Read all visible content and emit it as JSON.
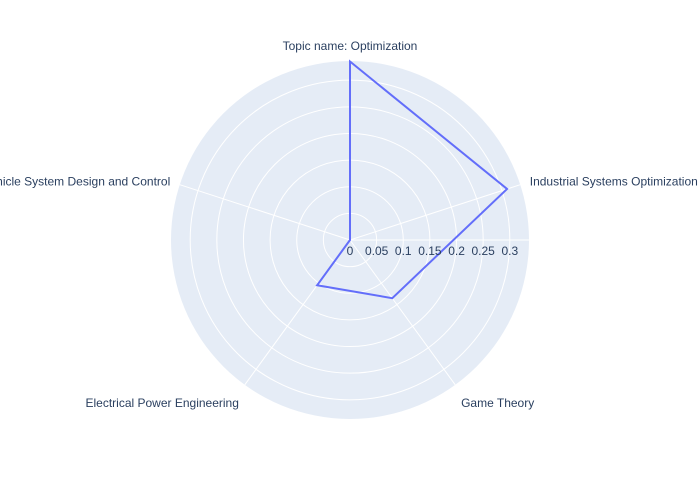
{
  "chart_data": {
    "type": "radar",
    "categories": [
      "Topic name: Optimization",
      "Industrial Systems Optimization",
      "Game Theory",
      "Electrical Power Engineering",
      "Vehicle System Design and Control"
    ],
    "series": [
      {
        "values": [
          0.335,
          0.31,
          0.135,
          0.105,
          0.0
        ],
        "color": "#636efa"
      }
    ],
    "radial_axis": {
      "range": [
        0,
        0.336
      ],
      "ticks": [
        0,
        0.05,
        0.1,
        0.15,
        0.2,
        0.25,
        0.3
      ],
      "tick_labels": [
        "0",
        "0.05",
        "0.1",
        "0.15",
        "0.2",
        "0.25",
        "0.3"
      ]
    },
    "colors": {
      "polar_background": "#e5ecf6",
      "grid": "#ffffff",
      "text": "#2a3f5f"
    },
    "grid": true
  }
}
